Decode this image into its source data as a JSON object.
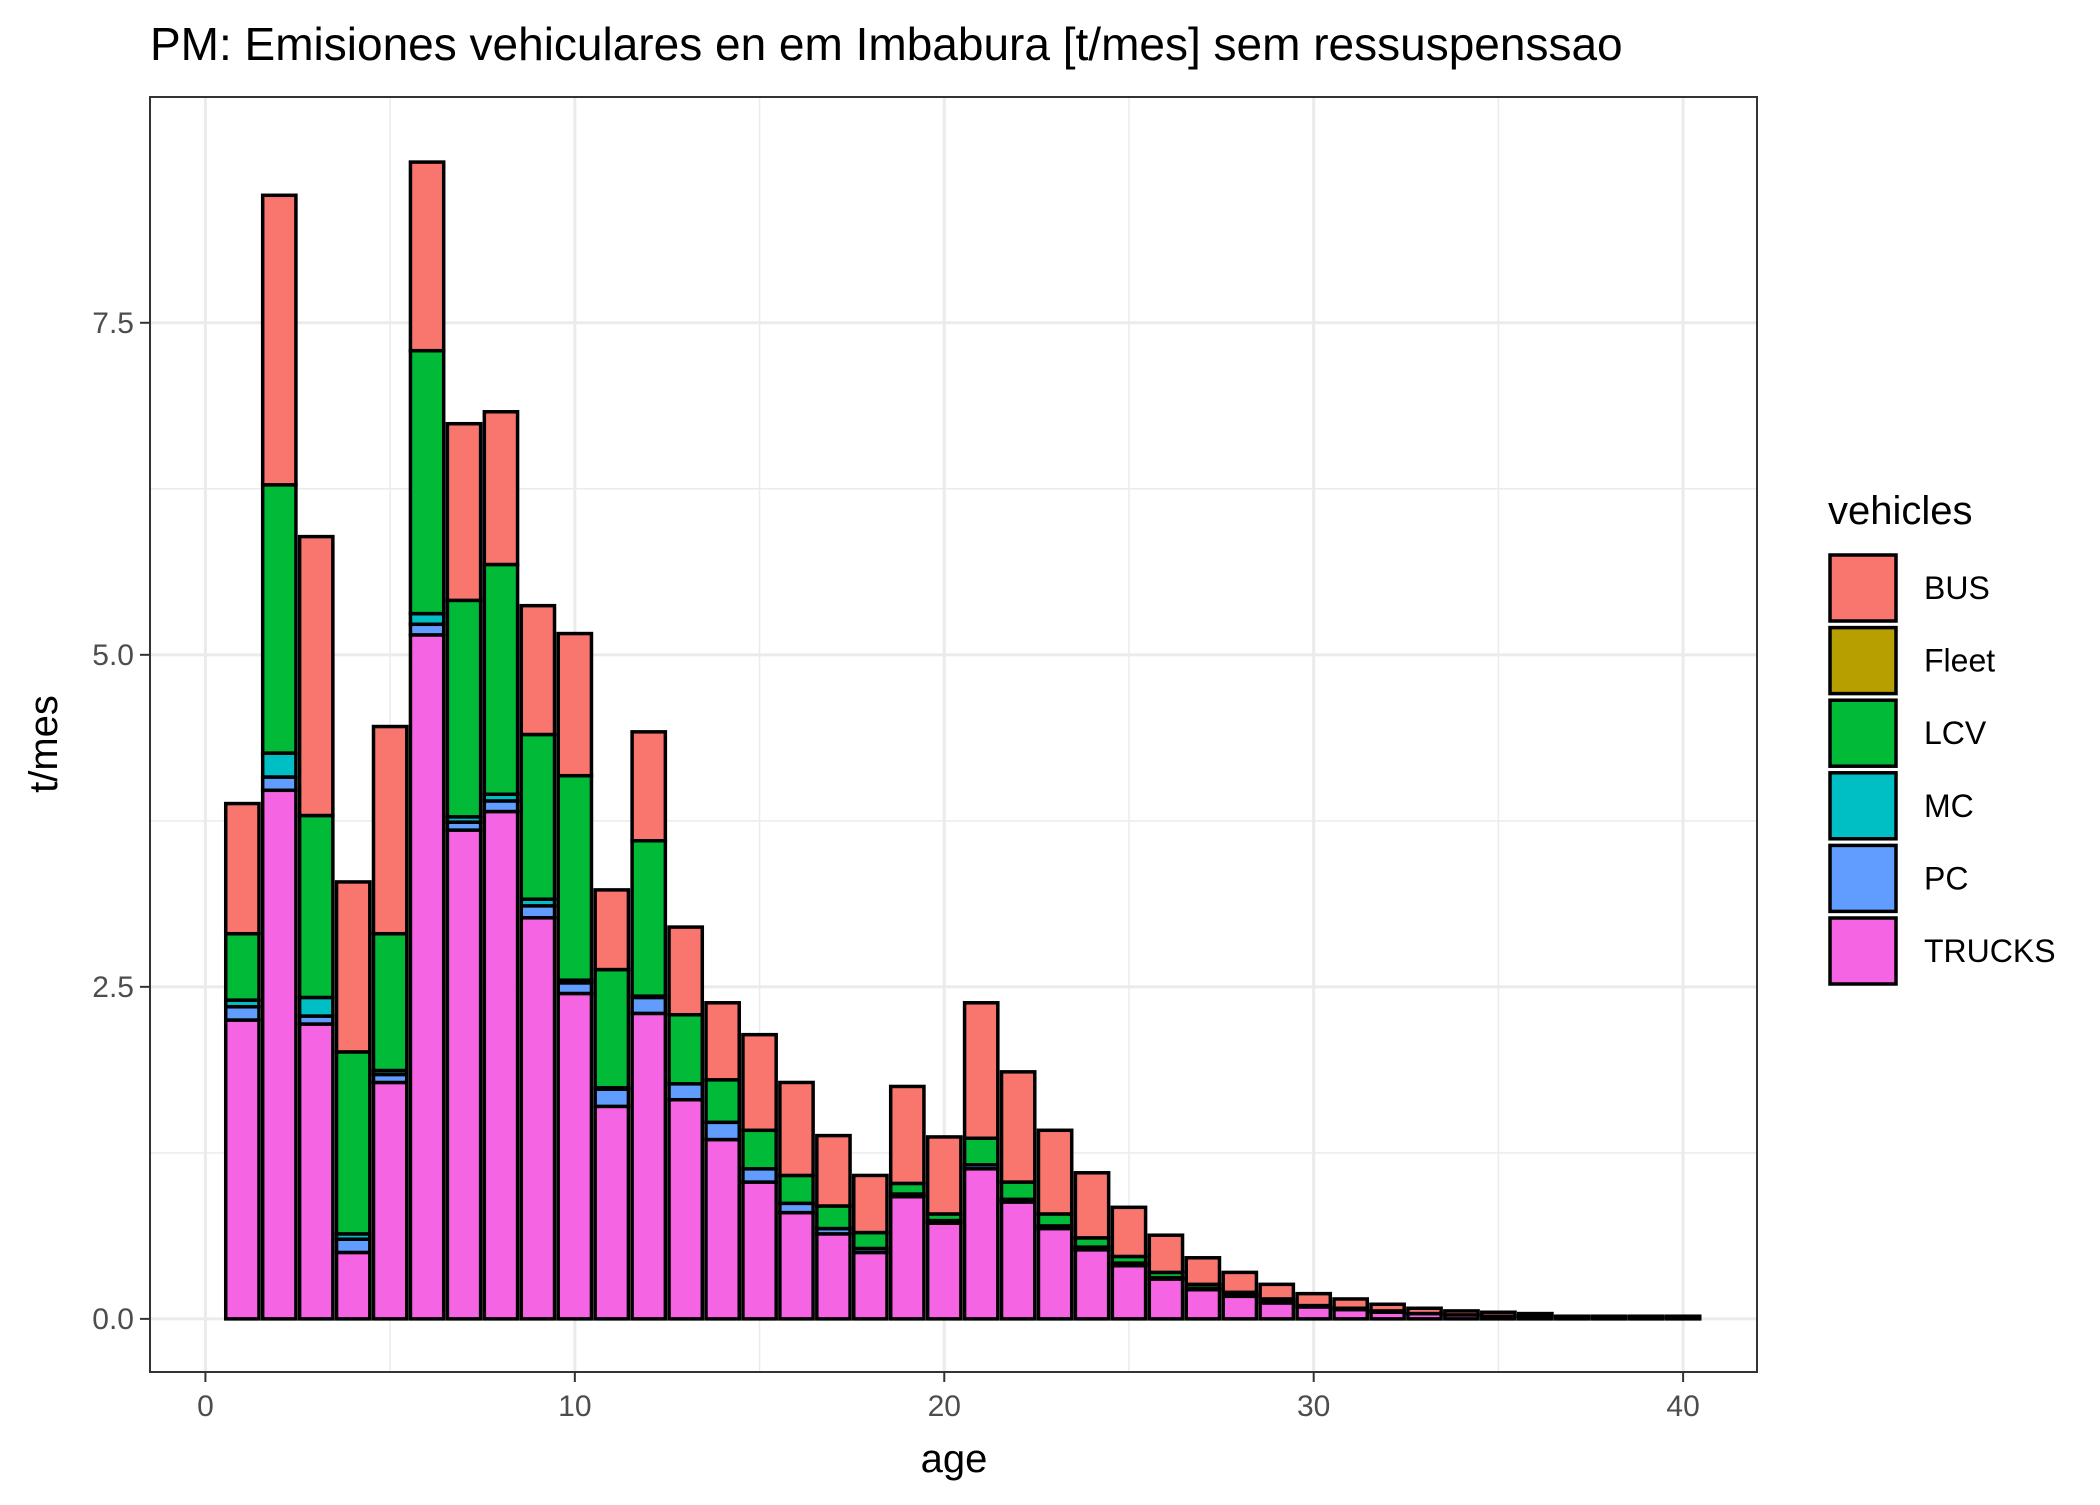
{
  "chart_data": {
    "type": "bar",
    "stacked": true,
    "title": "PM: Emisiones vehiculares en  em Imbabura [t/mes] sem ressuspenssao",
    "xlabel": "age",
    "ylabel": "t/mes",
    "xlim": [
      -1.5,
      42
    ],
    "ylim": [
      -0.4,
      9.2
    ],
    "xticks": [
      0,
      10,
      20,
      30,
      40
    ],
    "xtick_labels": [
      "0",
      "10",
      "20",
      "30",
      "40"
    ],
    "yticks": [
      0,
      2.5,
      5,
      7.5
    ],
    "ytick_labels": [
      "0.0",
      "2.5",
      "5.0",
      "7.5"
    ],
    "grid": true,
    "legend_title": "vehicles",
    "legend_position": "right",
    "x": [
      1,
      2,
      3,
      4,
      5,
      6,
      7,
      8,
      9,
      10,
      11,
      12,
      13,
      14,
      15,
      16,
      17,
      18,
      19,
      20,
      21,
      22,
      23,
      24,
      25,
      26,
      27,
      28,
      29,
      30,
      31,
      32,
      33,
      34,
      35,
      36,
      37,
      38,
      39,
      40
    ],
    "series": [
      {
        "name": "TRUCKS",
        "color": "#F564E3",
        "values": [
          2.25,
          3.98,
          2.22,
          0.5,
          1.78,
          5.15,
          3.68,
          3.82,
          3.02,
          2.45,
          1.6,
          2.3,
          1.65,
          1.35,
          1.03,
          0.8,
          0.64,
          0.5,
          0.92,
          0.72,
          1.13,
          0.88,
          0.68,
          0.52,
          0.4,
          0.3,
          0.22,
          0.17,
          0.12,
          0.09,
          0.07,
          0.05,
          0.04,
          0.03,
          0.02,
          0.02,
          0.01,
          0.01,
          0.01,
          0.01
        ]
      },
      {
        "name": "PC",
        "color": "#619CFF",
        "values": [
          0.1,
          0.1,
          0.06,
          0.1,
          0.06,
          0.08,
          0.06,
          0.08,
          0.09,
          0.08,
          0.13,
          0.12,
          0.12,
          0.13,
          0.1,
          0.07,
          0.04,
          0.03,
          0.02,
          0.02,
          0.03,
          0.02,
          0.02,
          0.02,
          0.02,
          0.01,
          0.01,
          0.01,
          0.01,
          0,
          0,
          0,
          0,
          0,
          0,
          0,
          0,
          0,
          0,
          0
        ]
      },
      {
        "name": "MC",
        "color": "#00BFC4",
        "values": [
          0.05,
          0.18,
          0.14,
          0.04,
          0.03,
          0.08,
          0.04,
          0.05,
          0.05,
          0.02,
          0.01,
          0.01,
          0,
          0,
          0,
          0,
          0,
          0,
          0,
          0,
          0,
          0,
          0,
          0,
          0,
          0,
          0,
          0,
          0,
          0,
          0,
          0,
          0,
          0,
          0,
          0,
          0,
          0,
          0,
          0
        ]
      },
      {
        "name": "LCV",
        "color": "#00BA38",
        "values": [
          0.5,
          2.02,
          1.37,
          1.37,
          1.03,
          1.98,
          1.63,
          1.73,
          1.24,
          1.54,
          0.89,
          1.17,
          0.52,
          0.32,
          0.29,
          0.21,
          0.17,
          0.12,
          0.08,
          0.05,
          0.2,
          0.13,
          0.09,
          0.07,
          0.05,
          0.04,
          0.03,
          0.02,
          0.02,
          0.01,
          0.01,
          0.01,
          0,
          0,
          0,
          0,
          0,
          0,
          0,
          0
        ]
      },
      {
        "name": "Fleet",
        "color": "#B79F00",
        "values": [
          0,
          0,
          0,
          0,
          0,
          0,
          0,
          0,
          0,
          0,
          0,
          0,
          0,
          0,
          0,
          0,
          0,
          0,
          0,
          0,
          0,
          0,
          0,
          0,
          0,
          0,
          0,
          0,
          0,
          0,
          0,
          0,
          0,
          0,
          0,
          0,
          0,
          0,
          0,
          0
        ]
      },
      {
        "name": "BUS",
        "color": "#F8766D",
        "values": [
          0.98,
          2.18,
          2.1,
          1.28,
          1.56,
          1.42,
          1.33,
          1.15,
          0.97,
          1.07,
          0.6,
          0.82,
          0.66,
          0.58,
          0.72,
          0.7,
          0.53,
          0.43,
          0.73,
          0.58,
          1.02,
          0.83,
          0.63,
          0.49,
          0.37,
          0.28,
          0.2,
          0.15,
          0.11,
          0.09,
          0.07,
          0.05,
          0.04,
          0.03,
          0.03,
          0.02,
          0.01,
          0.01,
          0.01,
          0.01
        ]
      }
    ],
    "legend_order": [
      "BUS",
      "Fleet",
      "LCV",
      "MC",
      "PC",
      "TRUCKS"
    ]
  }
}
